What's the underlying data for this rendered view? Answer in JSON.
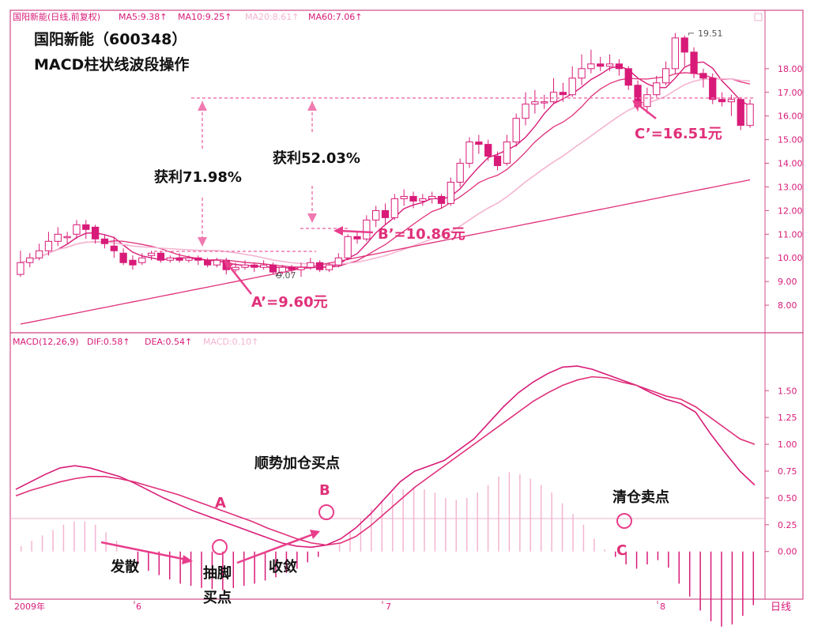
{
  "colors": {
    "pink": "#e83e8c",
    "magenta": "#d81b78",
    "lightpink": "#f4b4d1",
    "text": "#111111",
    "border": "#d24b8a",
    "grid": "#e9b3cc"
  },
  "header": {
    "stock": "国阳新能(日线,前复权)",
    "ma5": "MA5:9.38↑",
    "ma10": "MA10:9.25↑",
    "ma20": "MA20:8.61↑",
    "ma60": "MA60:7.06↑"
  },
  "title_line1": "国阳新能（600348）",
  "title_line2": "MACD柱状线波段操作",
  "annotations": {
    "profit1": "获利71.98%",
    "profit2": "获利52.03%",
    "a_prime": "A’=9.60元",
    "b_prime": "B’=10.86元",
    "c_prime": "C’=16.51元",
    "low": "9.07",
    "high": "19.51",
    "a": "A",
    "b": "B",
    "c": "C",
    "add_buy": "顺势加仓买点",
    "clear_sell": "清仓卖点",
    "diverge": "发散",
    "bottom_word1": "抽脚",
    "bottom_word2": "买点",
    "converge": "收敛"
  },
  "macd_header": {
    "label": "MACD(12,26,9)",
    "dif": "DIF:0.58↑",
    "dea": "DEA:0.54↑",
    "macd": "MACD:0.10↑"
  },
  "footer": {
    "year": "2009年",
    "m6": "6",
    "m7": "7",
    "m8": "8",
    "period": "日线"
  },
  "chart_data": [
    {
      "type": "candlestick",
      "y_ticks": [
        "18.00",
        "17.00",
        "16.00",
        "15.00",
        "14.00",
        "13.00",
        "12.00",
        "11.00",
        "10.00",
        "9.00",
        "8.00"
      ],
      "ylim": [
        7.0,
        19.9
      ],
      "candles": [
        [
          9.3,
          9.8,
          10.3,
          9.2
        ],
        [
          9.8,
          10.0,
          10.2,
          9.6
        ],
        [
          10.0,
          10.3,
          10.6,
          9.9
        ],
        [
          10.3,
          10.7,
          11.1,
          10.1
        ],
        [
          10.7,
          11.0,
          11.3,
          10.5
        ],
        [
          10.9,
          10.9,
          11.1,
          10.6
        ],
        [
          11.0,
          11.4,
          11.6,
          10.8
        ],
        [
          11.4,
          11.2,
          11.6,
          10.8
        ],
        [
          11.3,
          10.8,
          11.4,
          10.6
        ],
        [
          10.8,
          10.6,
          11.0,
          10.4
        ],
        [
          10.5,
          10.3,
          10.9,
          10.0
        ],
        [
          10.2,
          9.8,
          10.4,
          9.7
        ],
        [
          9.9,
          9.7,
          10.1,
          9.5
        ],
        [
          9.8,
          10.0,
          10.2,
          9.7
        ],
        [
          10.1,
          10.2,
          10.3,
          9.9
        ],
        [
          10.2,
          9.9,
          10.3,
          9.8
        ],
        [
          9.9,
          10.0,
          10.1,
          9.8
        ],
        [
          10.0,
          9.9,
          10.2,
          9.8
        ],
        [
          9.9,
          10.0,
          10.1,
          9.8
        ],
        [
          10.0,
          9.9,
          10.1,
          9.7
        ],
        [
          9.9,
          9.7,
          10.0,
          9.6
        ],
        [
          9.7,
          9.9,
          10.0,
          9.6
        ],
        [
          9.9,
          9.5,
          10.0,
          9.3
        ],
        [
          9.5,
          9.6,
          9.8,
          9.4
        ],
        [
          9.6,
          9.7,
          9.9,
          9.5
        ],
        [
          9.7,
          9.6,
          9.8,
          9.4
        ],
        [
          9.6,
          9.7,
          9.9,
          9.5
        ],
        [
          9.7,
          9.4,
          9.8,
          9.3
        ],
        [
          9.4,
          9.6,
          9.7,
          9.3
        ],
        [
          9.6,
          9.5,
          9.7,
          9.3
        ],
        [
          9.5,
          9.6,
          9.8,
          9.2
        ],
        [
          9.6,
          9.8,
          10.0,
          9.5
        ],
        [
          9.8,
          9.5,
          9.9,
          9.4
        ],
        [
          9.5,
          9.7,
          9.8,
          9.4
        ],
        [
          9.7,
          10.0,
          10.2,
          9.6
        ],
        [
          10.0,
          10.9,
          11.0,
          9.9
        ],
        [
          10.9,
          10.8,
          11.1,
          10.6
        ],
        [
          10.8,
          11.6,
          11.8,
          10.7
        ],
        [
          11.6,
          12.0,
          12.2,
          11.3
        ],
        [
          12.0,
          11.7,
          12.3,
          11.4
        ],
        [
          11.7,
          12.5,
          12.7,
          11.6
        ],
        [
          12.5,
          12.6,
          12.9,
          12.2
        ],
        [
          12.6,
          12.4,
          12.8,
          12.1
        ],
        [
          12.4,
          12.5,
          12.7,
          12.2
        ],
        [
          12.5,
          12.6,
          12.8,
          12.3
        ],
        [
          12.6,
          12.3,
          12.7,
          12.1
        ],
        [
          12.3,
          13.2,
          13.4,
          12.2
        ],
        [
          13.2,
          14.0,
          14.2,
          13.0
        ],
        [
          14.0,
          14.9,
          15.1,
          13.8
        ],
        [
          14.9,
          14.8,
          15.2,
          14.4
        ],
        [
          14.8,
          14.3,
          15.0,
          14.1
        ],
        [
          14.3,
          13.9,
          14.5,
          13.7
        ],
        [
          14.0,
          14.9,
          15.2,
          13.9
        ],
        [
          14.9,
          15.9,
          16.1,
          14.7
        ],
        [
          15.9,
          16.5,
          17.0,
          15.6
        ],
        [
          16.5,
          16.6,
          17.1,
          16.1
        ],
        [
          16.6,
          16.6,
          16.9,
          16.3
        ],
        [
          16.6,
          17.0,
          17.6,
          16.5
        ],
        [
          17.0,
          16.9,
          17.4,
          16.6
        ],
        [
          16.9,
          17.6,
          18.1,
          16.8
        ],
        [
          17.6,
          18.0,
          18.6,
          17.3
        ],
        [
          18.0,
          18.2,
          18.8,
          17.8
        ],
        [
          18.2,
          18.1,
          18.5,
          17.9
        ],
        [
          18.1,
          18.2,
          18.6,
          17.9
        ],
        [
          18.2,
          18.0,
          18.4,
          17.7
        ],
        [
          18.0,
          17.3,
          18.1,
          17.1
        ],
        [
          17.3,
          16.4,
          17.5,
          16.2
        ],
        [
          16.4,
          16.9,
          17.2,
          16.1
        ],
        [
          16.9,
          17.4,
          17.7,
          16.8
        ],
        [
          17.4,
          18.0,
          18.3,
          17.3
        ],
        [
          18.0,
          19.3,
          19.51,
          17.8
        ],
        [
          19.3,
          18.7,
          19.4,
          18.1
        ],
        [
          18.7,
          17.8,
          18.9,
          17.6
        ],
        [
          17.8,
          17.6,
          18.0,
          17.2
        ],
        [
          17.6,
          16.7,
          17.8,
          16.5
        ],
        [
          16.7,
          16.6,
          17.0,
          16.4
        ],
        [
          16.6,
          16.7,
          16.9,
          16.0
        ],
        [
          16.7,
          15.6,
          16.8,
          15.4
        ],
        [
          15.6,
          16.5,
          16.7,
          15.5
        ]
      ]
    },
    {
      "type": "bar",
      "y_ticks": [
        "1.50",
        "1.25",
        "1.00",
        "0.75",
        "0.50",
        "0.25",
        "0.00"
      ],
      "ylim": [
        -0.4,
        1.9
      ],
      "histogram": [
        0.05,
        0.1,
        0.15,
        0.2,
        0.25,
        0.28,
        0.28,
        0.25,
        0.18,
        0.1,
        0.0,
        -0.12,
        -0.18,
        -0.22,
        -0.26,
        -0.3,
        -0.32,
        -0.34,
        -0.35,
        -0.36,
        -0.34,
        -0.32,
        -0.3,
        -0.27,
        -0.24,
        -0.2,
        -0.16,
        -0.1,
        -0.05,
        0.0,
        0.08,
        0.18,
        0.3,
        0.4,
        0.48,
        0.54,
        0.58,
        0.6,
        0.58,
        0.55,
        0.5,
        0.48,
        0.5,
        0.55,
        0.62,
        0.7,
        0.74,
        0.72,
        0.68,
        0.62,
        0.55,
        0.45,
        0.35,
        0.25,
        0.12,
        0.02,
        -0.05,
        -0.12,
        -0.16,
        -0.12,
        -0.08,
        -0.15,
        -0.3,
        -0.42,
        -0.55,
        -0.65,
        -0.7,
        -0.68,
        -0.6,
        -0.5
      ],
      "dif": [
        0.58,
        0.65,
        0.72,
        0.78,
        0.8,
        0.78,
        0.74,
        0.7,
        0.64,
        0.57,
        0.5,
        0.44,
        0.38,
        0.33,
        0.28,
        0.23,
        0.18,
        0.13,
        0.08,
        0.05,
        0.04,
        0.06,
        0.12,
        0.22,
        0.35,
        0.5,
        0.65,
        0.75,
        0.8,
        0.85,
        0.95,
        1.05,
        1.2,
        1.35,
        1.48,
        1.58,
        1.66,
        1.72,
        1.73,
        1.7,
        1.65,
        1.6,
        1.55,
        1.48,
        1.42,
        1.38,
        1.3,
        1.1,
        0.92,
        0.75,
        0.62
      ],
      "dea": [
        0.52,
        0.57,
        0.61,
        0.65,
        0.68,
        0.7,
        0.7,
        0.68,
        0.65,
        0.61,
        0.57,
        0.53,
        0.48,
        0.43,
        0.38,
        0.33,
        0.28,
        0.22,
        0.17,
        0.12,
        0.08,
        0.06,
        0.08,
        0.14,
        0.24,
        0.36,
        0.48,
        0.6,
        0.7,
        0.8,
        0.9,
        1.0,
        1.1,
        1.2,
        1.3,
        1.4,
        1.48,
        1.55,
        1.6,
        1.63,
        1.62,
        1.58,
        1.55,
        1.5,
        1.45,
        1.42,
        1.35,
        1.25,
        1.15,
        1.05,
        1.0
      ]
    }
  ]
}
